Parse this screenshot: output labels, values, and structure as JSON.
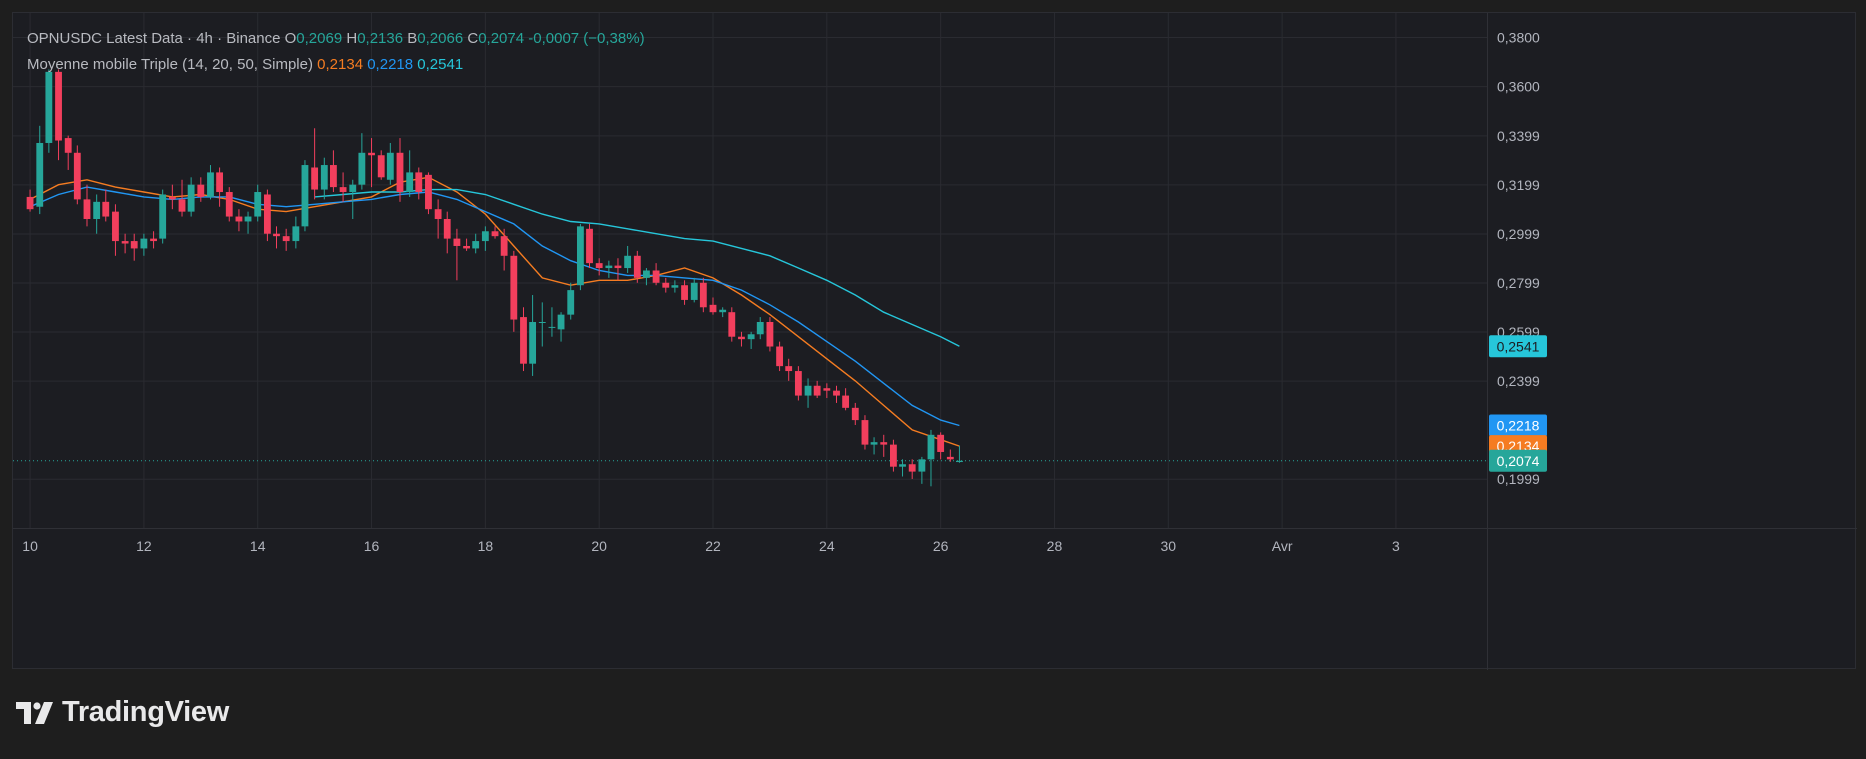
{
  "header": {
    "symbol": "OPNUSDC Latest Data · 4h · Binance",
    "o_label": "O",
    "o_value": "0,2069",
    "h_label": "H",
    "h_value": "0,2136",
    "b_label": "B",
    "b_value": "0,2066",
    "c_label": "C",
    "c_value": "0,2074",
    "change": "-0,0007 (−0,38%)",
    "indicator_name": "Moyenne mobile Triple (14, 20, 50, Simple)",
    "ma1_value": "0,2134",
    "ma2_value": "0,2218",
    "ma3_value": "0,2541"
  },
  "brand": {
    "name": "TradingView"
  },
  "colors": {
    "up": "#26a69a",
    "down": "#f23f5d",
    "ma14": "#f57c21",
    "ma20": "#2196f3",
    "ma50": "#26c6da",
    "last_price_bg": "#26a69a",
    "ma20_bg": "#2196f3",
    "ma14_bg": "#f57c21",
    "ma50_bg": "#26c6da"
  },
  "chart_data": {
    "type": "candlestick",
    "y_ticks": [
      "0,3800",
      "0,3600",
      "0,3399",
      "0,3199",
      "0,2999",
      "0,2799",
      "0,2599",
      "0,2399",
      "0,1999"
    ],
    "y_tick_values": [
      0.38,
      0.36,
      0.3399,
      0.3199,
      0.2999,
      0.2799,
      0.2599,
      0.2399,
      0.1999
    ],
    "ylim": [
      0.18,
      0.39
    ],
    "x_ticks": [
      "10",
      "12",
      "14",
      "16",
      "18",
      "20",
      "22",
      "24",
      "26",
      "28",
      "30",
      "Avr",
      "3"
    ],
    "x_tick_days": [
      10,
      12,
      14,
      16,
      18,
      20,
      22,
      24,
      26,
      28,
      30,
      32,
      34
    ],
    "x_range_days": [
      9.7,
      35.6
    ],
    "grid": true,
    "price_labels": [
      {
        "text": "0,2541",
        "value": 0.2541,
        "color": "#26c6da",
        "text_color": "#1c1d22"
      },
      {
        "text": "0,2218",
        "value": 0.2218,
        "color": "#2196f3",
        "text_color": "#ffffff"
      },
      {
        "text": "0,2134",
        "value": 0.2134,
        "color": "#f57c21",
        "text_color": "#ffffff"
      },
      {
        "text": "0,2074",
        "value": 0.2074,
        "color": "#26a69a",
        "text_color": "#ffffff"
      }
    ],
    "last_price": 0.2074,
    "candles": [
      {
        "x": 10.0,
        "o": 0.315,
        "h": 0.318,
        "l": 0.309,
        "c": 0.31
      },
      {
        "x": 10.17,
        "o": 0.311,
        "h": 0.344,
        "l": 0.308,
        "c": 0.337
      },
      {
        "x": 10.33,
        "o": 0.337,
        "h": 0.367,
        "l": 0.333,
        "c": 0.366
      },
      {
        "x": 10.5,
        "o": 0.366,
        "h": 0.367,
        "l": 0.33,
        "c": 0.338
      },
      {
        "x": 10.67,
        "o": 0.339,
        "h": 0.34,
        "l": 0.326,
        "c": 0.333
      },
      {
        "x": 10.83,
        "o": 0.333,
        "h": 0.336,
        "l": 0.312,
        "c": 0.314
      },
      {
        "x": 11.0,
        "o": 0.314,
        "h": 0.32,
        "l": 0.303,
        "c": 0.306
      },
      {
        "x": 11.17,
        "o": 0.306,
        "h": 0.316,
        "l": 0.3,
        "c": 0.313
      },
      {
        "x": 11.33,
        "o": 0.313,
        "h": 0.318,
        "l": 0.305,
        "c": 0.307
      },
      {
        "x": 11.5,
        "o": 0.309,
        "h": 0.312,
        "l": 0.291,
        "c": 0.297
      },
      {
        "x": 11.67,
        "o": 0.297,
        "h": 0.3,
        "l": 0.292,
        "c": 0.296
      },
      {
        "x": 11.83,
        "o": 0.297,
        "h": 0.3,
        "l": 0.289,
        "c": 0.294
      },
      {
        "x": 12.0,
        "o": 0.294,
        "h": 0.3,
        "l": 0.291,
        "c": 0.298
      },
      {
        "x": 12.17,
        "o": 0.298,
        "h": 0.301,
        "l": 0.294,
        "c": 0.297
      },
      {
        "x": 12.33,
        "o": 0.298,
        "h": 0.318,
        "l": 0.296,
        "c": 0.316
      },
      {
        "x": 12.5,
        "o": 0.315,
        "h": 0.32,
        "l": 0.31,
        "c": 0.314
      },
      {
        "x": 12.67,
        "o": 0.314,
        "h": 0.322,
        "l": 0.307,
        "c": 0.309
      },
      {
        "x": 12.83,
        "o": 0.309,
        "h": 0.323,
        "l": 0.307,
        "c": 0.32
      },
      {
        "x": 13.0,
        "o": 0.32,
        "h": 0.323,
        "l": 0.313,
        "c": 0.315
      },
      {
        "x": 13.17,
        "o": 0.315,
        "h": 0.328,
        "l": 0.314,
        "c": 0.325
      },
      {
        "x": 13.33,
        "o": 0.325,
        "h": 0.327,
        "l": 0.311,
        "c": 0.317
      },
      {
        "x": 13.5,
        "o": 0.317,
        "h": 0.319,
        "l": 0.305,
        "c": 0.307
      },
      {
        "x": 13.67,
        "o": 0.307,
        "h": 0.31,
        "l": 0.301,
        "c": 0.305
      },
      {
        "x": 13.83,
        "o": 0.305,
        "h": 0.309,
        "l": 0.3,
        "c": 0.307
      },
      {
        "x": 14.0,
        "o": 0.307,
        "h": 0.32,
        "l": 0.305,
        "c": 0.317
      },
      {
        "x": 14.17,
        "o": 0.316,
        "h": 0.318,
        "l": 0.297,
        "c": 0.3
      },
      {
        "x": 14.33,
        "o": 0.3,
        "h": 0.303,
        "l": 0.294,
        "c": 0.299
      },
      {
        "x": 14.5,
        "o": 0.299,
        "h": 0.302,
        "l": 0.293,
        "c": 0.297
      },
      {
        "x": 14.67,
        "o": 0.297,
        "h": 0.307,
        "l": 0.294,
        "c": 0.303
      },
      {
        "x": 14.83,
        "o": 0.303,
        "h": 0.33,
        "l": 0.301,
        "c": 0.328
      },
      {
        "x": 15.0,
        "o": 0.327,
        "h": 0.343,
        "l": 0.314,
        "c": 0.318
      },
      {
        "x": 15.17,
        "o": 0.318,
        "h": 0.331,
        "l": 0.314,
        "c": 0.328
      },
      {
        "x": 15.33,
        "o": 0.328,
        "h": 0.334,
        "l": 0.317,
        "c": 0.319
      },
      {
        "x": 15.5,
        "o": 0.319,
        "h": 0.325,
        "l": 0.313,
        "c": 0.317
      },
      {
        "x": 15.67,
        "o": 0.317,
        "h": 0.322,
        "l": 0.306,
        "c": 0.32
      },
      {
        "x": 15.83,
        "o": 0.32,
        "h": 0.341,
        "l": 0.318,
        "c": 0.333
      },
      {
        "x": 16.0,
        "o": 0.333,
        "h": 0.339,
        "l": 0.319,
        "c": 0.332
      },
      {
        "x": 16.17,
        "o": 0.332,
        "h": 0.334,
        "l": 0.322,
        "c": 0.323
      },
      {
        "x": 16.33,
        "o": 0.322,
        "h": 0.337,
        "l": 0.32,
        "c": 0.333
      },
      {
        "x": 16.5,
        "o": 0.333,
        "h": 0.339,
        "l": 0.313,
        "c": 0.317
      },
      {
        "x": 16.67,
        "o": 0.317,
        "h": 0.334,
        "l": 0.315,
        "c": 0.325
      },
      {
        "x": 16.83,
        "o": 0.325,
        "h": 0.327,
        "l": 0.314,
        "c": 0.317
      },
      {
        "x": 17.0,
        "o": 0.324,
        "h": 0.325,
        "l": 0.308,
        "c": 0.31
      },
      {
        "x": 17.17,
        "o": 0.31,
        "h": 0.314,
        "l": 0.298,
        "c": 0.306
      },
      {
        "x": 17.33,
        "o": 0.306,
        "h": 0.309,
        "l": 0.292,
        "c": 0.298
      },
      {
        "x": 17.5,
        "o": 0.298,
        "h": 0.302,
        "l": 0.281,
        "c": 0.295
      },
      {
        "x": 17.67,
        "o": 0.295,
        "h": 0.298,
        "l": 0.293,
        "c": 0.294
      },
      {
        "x": 17.83,
        "o": 0.294,
        "h": 0.3,
        "l": 0.292,
        "c": 0.297
      },
      {
        "x": 18.0,
        "o": 0.297,
        "h": 0.303,
        "l": 0.293,
        "c": 0.301
      },
      {
        "x": 18.17,
        "o": 0.301,
        "h": 0.303,
        "l": 0.298,
        "c": 0.299
      },
      {
        "x": 18.33,
        "o": 0.299,
        "h": 0.302,
        "l": 0.285,
        "c": 0.291
      },
      {
        "x": 18.5,
        "o": 0.291,
        "h": 0.293,
        "l": 0.26,
        "c": 0.265
      },
      {
        "x": 18.67,
        "o": 0.266,
        "h": 0.27,
        "l": 0.244,
        "c": 0.247
      },
      {
        "x": 18.83,
        "o": 0.247,
        "h": 0.275,
        "l": 0.242,
        "c": 0.264
      },
      {
        "x": 19.0,
        "o": 0.264,
        "h": 0.272,
        "l": 0.254,
        "c": 0.264
      },
      {
        "x": 19.17,
        "o": 0.262,
        "h": 0.27,
        "l": 0.258,
        "c": 0.262
      },
      {
        "x": 19.33,
        "o": 0.261,
        "h": 0.268,
        "l": 0.256,
        "c": 0.267
      },
      {
        "x": 19.5,
        "o": 0.267,
        "h": 0.28,
        "l": 0.265,
        "c": 0.277
      },
      {
        "x": 19.67,
        "o": 0.279,
        "h": 0.304,
        "l": 0.277,
        "c": 0.303
      },
      {
        "x": 19.83,
        "o": 0.302,
        "h": 0.304,
        "l": 0.286,
        "c": 0.288
      },
      {
        "x": 20.0,
        "o": 0.288,
        "h": 0.29,
        "l": 0.283,
        "c": 0.286
      },
      {
        "x": 20.17,
        "o": 0.286,
        "h": 0.289,
        "l": 0.282,
        "c": 0.287
      },
      {
        "x": 20.33,
        "o": 0.287,
        "h": 0.29,
        "l": 0.281,
        "c": 0.286
      },
      {
        "x": 20.5,
        "o": 0.286,
        "h": 0.295,
        "l": 0.284,
        "c": 0.291
      },
      {
        "x": 20.67,
        "o": 0.291,
        "h": 0.293,
        "l": 0.28,
        "c": 0.282
      },
      {
        "x": 20.83,
        "o": 0.282,
        "h": 0.286,
        "l": 0.279,
        "c": 0.285
      },
      {
        "x": 21.0,
        "o": 0.285,
        "h": 0.288,
        "l": 0.279,
        "c": 0.28
      },
      {
        "x": 21.17,
        "o": 0.28,
        "h": 0.282,
        "l": 0.276,
        "c": 0.278
      },
      {
        "x": 21.33,
        "o": 0.278,
        "h": 0.281,
        "l": 0.276,
        "c": 0.279
      },
      {
        "x": 21.5,
        "o": 0.279,
        "h": 0.281,
        "l": 0.271,
        "c": 0.273
      },
      {
        "x": 21.67,
        "o": 0.273,
        "h": 0.282,
        "l": 0.272,
        "c": 0.28
      },
      {
        "x": 21.83,
        "o": 0.28,
        "h": 0.282,
        "l": 0.268,
        "c": 0.27
      },
      {
        "x": 22.0,
        "o": 0.271,
        "h": 0.274,
        "l": 0.267,
        "c": 0.268
      },
      {
        "x": 22.17,
        "o": 0.268,
        "h": 0.27,
        "l": 0.266,
        "c": 0.269
      },
      {
        "x": 22.33,
        "o": 0.268,
        "h": 0.27,
        "l": 0.256,
        "c": 0.258
      },
      {
        "x": 22.5,
        "o": 0.258,
        "h": 0.26,
        "l": 0.254,
        "c": 0.257
      },
      {
        "x": 22.67,
        "o": 0.257,
        "h": 0.26,
        "l": 0.253,
        "c": 0.259
      },
      {
        "x": 22.83,
        "o": 0.259,
        "h": 0.266,
        "l": 0.257,
        "c": 0.264
      },
      {
        "x": 23.0,
        "o": 0.264,
        "h": 0.266,
        "l": 0.252,
        "c": 0.254
      },
      {
        "x": 23.17,
        "o": 0.254,
        "h": 0.256,
        "l": 0.244,
        "c": 0.246
      },
      {
        "x": 23.33,
        "o": 0.246,
        "h": 0.249,
        "l": 0.24,
        "c": 0.244
      },
      {
        "x": 23.5,
        "o": 0.244,
        "h": 0.246,
        "l": 0.232,
        "c": 0.234
      },
      {
        "x": 23.67,
        "o": 0.234,
        "h": 0.241,
        "l": 0.229,
        "c": 0.238
      },
      {
        "x": 23.83,
        "o": 0.238,
        "h": 0.24,
        "l": 0.233,
        "c": 0.234
      },
      {
        "x": 24.0,
        "o": 0.237,
        "h": 0.239,
        "l": 0.233,
        "c": 0.236
      },
      {
        "x": 24.17,
        "o": 0.236,
        "h": 0.238,
        "l": 0.231,
        "c": 0.234
      },
      {
        "x": 24.33,
        "o": 0.234,
        "h": 0.237,
        "l": 0.228,
        "c": 0.229
      },
      {
        "x": 24.5,
        "o": 0.229,
        "h": 0.231,
        "l": 0.222,
        "c": 0.224
      },
      {
        "x": 24.67,
        "o": 0.224,
        "h": 0.226,
        "l": 0.212,
        "c": 0.214
      },
      {
        "x": 24.83,
        "o": 0.214,
        "h": 0.217,
        "l": 0.21,
        "c": 0.215
      },
      {
        "x": 25.0,
        "o": 0.215,
        "h": 0.218,
        "l": 0.209,
        "c": 0.214
      },
      {
        "x": 25.17,
        "o": 0.214,
        "h": 0.216,
        "l": 0.203,
        "c": 0.205
      },
      {
        "x": 25.33,
        "o": 0.205,
        "h": 0.208,
        "l": 0.201,
        "c": 0.206
      },
      {
        "x": 25.5,
        "o": 0.206,
        "h": 0.208,
        "l": 0.2,
        "c": 0.203
      },
      {
        "x": 25.67,
        "o": 0.203,
        "h": 0.209,
        "l": 0.198,
        "c": 0.208
      },
      {
        "x": 25.83,
        "o": 0.208,
        "h": 0.22,
        "l": 0.197,
        "c": 0.218
      },
      {
        "x": 26.0,
        "o": 0.218,
        "h": 0.219,
        "l": 0.208,
        "c": 0.211
      },
      {
        "x": 26.17,
        "o": 0.209,
        "h": 0.212,
        "l": 0.207,
        "c": 0.208
      },
      {
        "x": 26.33,
        "o": 0.2069,
        "h": 0.2136,
        "l": 0.2066,
        "c": 0.2074
      }
    ],
    "series": [
      {
        "name": "MA 14",
        "color": "#f57c21",
        "points": [
          [
            10.0,
            0.314
          ],
          [
            10.5,
            0.32
          ],
          [
            11.0,
            0.322
          ],
          [
            11.5,
            0.319
          ],
          [
            12.0,
            0.317
          ],
          [
            12.5,
            0.315
          ],
          [
            13.0,
            0.316
          ],
          [
            13.5,
            0.314
          ],
          [
            14.0,
            0.31
          ],
          [
            14.5,
            0.309
          ],
          [
            15.0,
            0.311
          ],
          [
            15.5,
            0.313
          ],
          [
            16.0,
            0.315
          ],
          [
            16.5,
            0.321
          ],
          [
            17.0,
            0.323
          ],
          [
            17.5,
            0.317
          ],
          [
            18.0,
            0.308
          ],
          [
            18.5,
            0.295
          ],
          [
            19.0,
            0.282
          ],
          [
            19.5,
            0.279
          ],
          [
            20.0,
            0.281
          ],
          [
            20.5,
            0.281
          ],
          [
            21.0,
            0.283
          ],
          [
            21.5,
            0.286
          ],
          [
            22.0,
            0.282
          ],
          [
            22.5,
            0.275
          ],
          [
            23.0,
            0.267
          ],
          [
            23.5,
            0.258
          ],
          [
            24.0,
            0.249
          ],
          [
            24.5,
            0.24
          ],
          [
            25.0,
            0.23
          ],
          [
            25.5,
            0.22
          ],
          [
            26.0,
            0.216
          ],
          [
            26.33,
            0.2134
          ]
        ]
      },
      {
        "name": "MA 20",
        "color": "#2196f3",
        "points": [
          [
            10.0,
            0.311
          ],
          [
            10.5,
            0.316
          ],
          [
            11.0,
            0.319
          ],
          [
            11.5,
            0.317
          ],
          [
            12.0,
            0.315
          ],
          [
            12.5,
            0.314
          ],
          [
            13.0,
            0.315
          ],
          [
            13.5,
            0.315
          ],
          [
            14.0,
            0.312
          ],
          [
            14.5,
            0.311
          ],
          [
            15.0,
            0.312
          ],
          [
            15.5,
            0.313
          ],
          [
            16.0,
            0.314
          ],
          [
            16.5,
            0.316
          ],
          [
            17.0,
            0.317
          ],
          [
            17.5,
            0.314
          ],
          [
            18.0,
            0.309
          ],
          [
            18.5,
            0.304
          ],
          [
            19.0,
            0.295
          ],
          [
            19.5,
            0.289
          ],
          [
            20.0,
            0.285
          ],
          [
            20.5,
            0.283
          ],
          [
            21.0,
            0.283
          ],
          [
            21.5,
            0.282
          ],
          [
            22.0,
            0.281
          ],
          [
            22.5,
            0.277
          ],
          [
            23.0,
            0.271
          ],
          [
            23.5,
            0.264
          ],
          [
            24.0,
            0.256
          ],
          [
            24.5,
            0.248
          ],
          [
            25.0,
            0.239
          ],
          [
            25.5,
            0.23
          ],
          [
            26.0,
            0.224
          ],
          [
            26.33,
            0.2218
          ]
        ]
      },
      {
        "name": "MA 50",
        "color": "#26c6da",
        "points": [
          [
            15.0,
            0.315
          ],
          [
            15.5,
            0.316
          ],
          [
            16.0,
            0.317
          ],
          [
            16.5,
            0.317
          ],
          [
            17.0,
            0.318
          ],
          [
            17.5,
            0.318
          ],
          [
            18.0,
            0.316
          ],
          [
            18.5,
            0.312
          ],
          [
            19.0,
            0.308
          ],
          [
            19.5,
            0.305
          ],
          [
            20.0,
            0.304
          ],
          [
            20.5,
            0.302
          ],
          [
            21.0,
            0.3
          ],
          [
            21.5,
            0.298
          ],
          [
            22.0,
            0.297
          ],
          [
            22.5,
            0.294
          ],
          [
            23.0,
            0.291
          ],
          [
            23.5,
            0.286
          ],
          [
            24.0,
            0.281
          ],
          [
            24.5,
            0.275
          ],
          [
            25.0,
            0.268
          ],
          [
            25.5,
            0.263
          ],
          [
            26.0,
            0.258
          ],
          [
            26.33,
            0.2541
          ]
        ]
      }
    ]
  }
}
